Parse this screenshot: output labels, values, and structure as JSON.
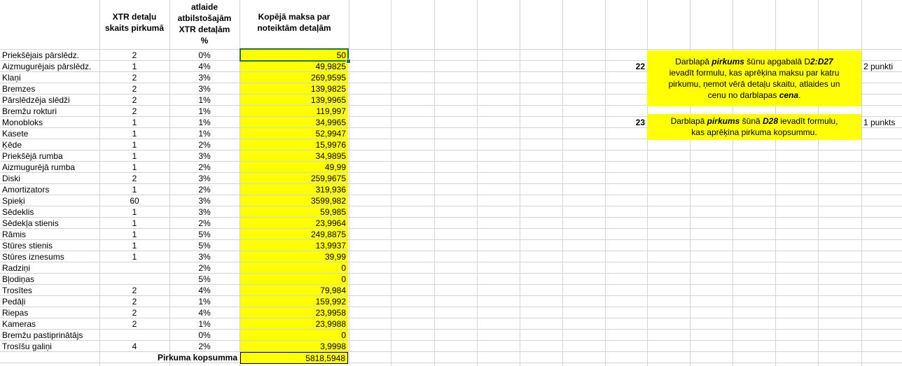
{
  "headers": {
    "count": [
      "XTR detaļu",
      "skaits pirkumā"
    ],
    "discount": [
      "atlaide",
      "atbilstošajām",
      "XTR detaļām",
      "%"
    ],
    "total": [
      "Kopējā maksa par",
      "noteiktām detaļām"
    ]
  },
  "rows": [
    {
      "name": "Priekšējais pārslēdz.",
      "qty": "2",
      "disc": "0%",
      "price": "50"
    },
    {
      "name": "Aizmugurējais pārslēdz.",
      "qty": "1",
      "disc": "4%",
      "price": "49,9825"
    },
    {
      "name": "Klaņi",
      "qty": "2",
      "disc": "3%",
      "price": "269,9595"
    },
    {
      "name": "Bremzes",
      "qty": "2",
      "disc": "3%",
      "price": "139,9825"
    },
    {
      "name": "Pārslēdzēja slēdži",
      "qty": "2",
      "disc": "1%",
      "price": "139,9965"
    },
    {
      "name": "Bremžu rokturi",
      "qty": "2",
      "disc": "1%",
      "price": "119,997"
    },
    {
      "name": "Monobloks",
      "qty": "1",
      "disc": "1%",
      "price": "34,9965"
    },
    {
      "name": "Kasete",
      "qty": "1",
      "disc": "1%",
      "price": "52,9947"
    },
    {
      "name": "Ķēde",
      "qty": "1",
      "disc": "2%",
      "price": "15,9976"
    },
    {
      "name": "Priekšējā rumba",
      "qty": "1",
      "disc": "3%",
      "price": "34,9895"
    },
    {
      "name": "Aizmugurējā rumba",
      "qty": "1",
      "disc": "2%",
      "price": "49,99"
    },
    {
      "name": "Diski",
      "qty": "2",
      "disc": "3%",
      "price": "259,9675"
    },
    {
      "name": "Amortizators",
      "qty": "1",
      "disc": "2%",
      "price": "319,936"
    },
    {
      "name": "Spieķi",
      "qty": "60",
      "disc": "3%",
      "price": "3599,982"
    },
    {
      "name": "Sēdeklis",
      "qty": "1",
      "disc": "3%",
      "price": "59,985"
    },
    {
      "name": "Sēdekļa stienis",
      "qty": "1",
      "disc": "2%",
      "price": "23,9964"
    },
    {
      "name": "Rāmis",
      "qty": "1",
      "disc": "5%",
      "price": "249,8875"
    },
    {
      "name": "Stūres stienis",
      "qty": "1",
      "disc": "5%",
      "price": "13,9937"
    },
    {
      "name": "Stūres iznesums",
      "qty": "1",
      "disc": "3%",
      "price": "39,99"
    },
    {
      "name": "Radziņi",
      "qty": "",
      "disc": "2%",
      "price": "0"
    },
    {
      "name": "Bļodiņas",
      "qty": "",
      "disc": "5%",
      "price": "0"
    },
    {
      "name": "Trosītes",
      "qty": "2",
      "disc": "4%",
      "price": "79,984"
    },
    {
      "name": "Pedāļi",
      "qty": "2",
      "disc": "1%",
      "price": "159,992"
    },
    {
      "name": "Riepas",
      "qty": "2",
      "disc": "4%",
      "price": "23,9958"
    },
    {
      "name": "Kameras",
      "qty": "2",
      "disc": "1%",
      "price": "23,9988"
    },
    {
      "name": "Bremžu pastiprinātājs",
      "qty": "",
      "disc": "0%",
      "price": "0"
    },
    {
      "name": "Trosīšu galiņi",
      "qty": "4",
      "disc": "2%",
      "price": "3,9998"
    }
  ],
  "total": {
    "label": "Pirkuma kopsumma",
    "value": "5818,5948"
  },
  "tasks": [
    {
      "number": "22",
      "line1": {
        "a": "Darblapā ",
        "b": "pirkums",
        "c": " šūnu apgabalā D",
        "d": "2:D27"
      },
      "line2": "ievadīt formulu, kas aprēķina maksu par katru",
      "line3": "pirkumu, ņemot vērā detaļu skaitu, atlaides un",
      "line4": {
        "a": "cenu no darblapas ",
        "b": "cena",
        "c": "."
      },
      "points": "2 punkti"
    },
    {
      "number": "23",
      "line1": {
        "a": "Darblapā ",
        "b": "pirkums",
        "c": " šūnā ",
        "d": "D28",
        "e": " ievadīt formulu,"
      },
      "line2": "kas aprēķina pirkuma kopsummu.",
      "points": "1 punkts"
    }
  ],
  "colors": {
    "highlight": "#ffff00",
    "gridline": "#d4d4d4",
    "selection": "#217346"
  }
}
